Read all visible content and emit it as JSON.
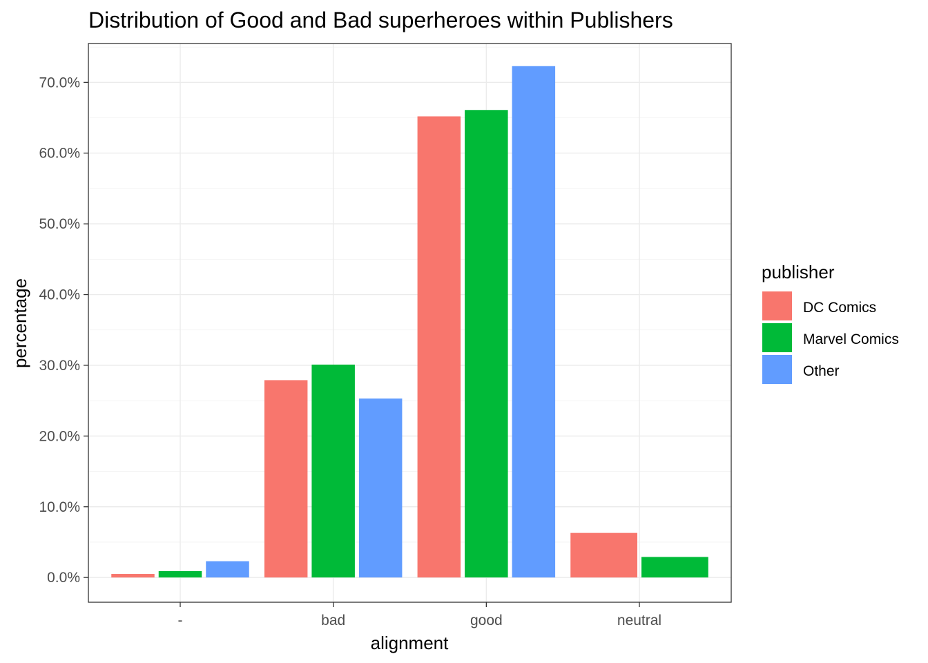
{
  "chart_data": {
    "type": "bar",
    "title": "Distribution of Good and Bad superheroes within Publishers",
    "xlabel": "alignment",
    "ylabel": "percentage",
    "categories": [
      "-",
      "bad",
      "good",
      "neutral"
    ],
    "series": [
      {
        "name": "DC Comics",
        "color": "#F8766D",
        "values": [
          0.5,
          27.9,
          65.2,
          6.3
        ]
      },
      {
        "name": "Marvel Comics",
        "color": "#00BA38",
        "values": [
          0.9,
          30.1,
          66.1,
          2.9
        ]
      },
      {
        "name": "Other",
        "color": "#619CFF",
        "values": [
          2.3,
          25.3,
          72.3,
          null
        ]
      }
    ],
    "ylim": [
      -3.5,
      75.5
    ],
    "y_ticks": [
      0,
      10,
      20,
      30,
      40,
      50,
      60,
      70
    ],
    "y_tick_labels": [
      "0.0%",
      "10.0%",
      "20.0%",
      "30.0%",
      "40.0%",
      "50.0%",
      "60.0%",
      "70.0%"
    ],
    "legend_title": "publisher",
    "legend_position": "right",
    "grid": true
  }
}
